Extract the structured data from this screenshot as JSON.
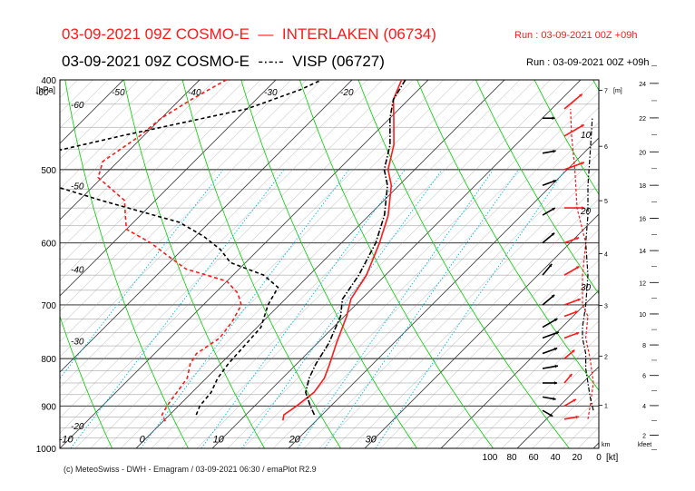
{
  "header": {
    "line1_title": "03-09-2021 09Z COSMO-E",
    "line1_station": "INTERLAKEN (06734)",
    "line1_run": "Run : 03-09-2021 00Z +09h",
    "line2_title": "03-09-2021 09Z COSMO-E",
    "line2_station": "VISP (06727)",
    "line2_run": "Run : 03-09-2021 00Z +09h"
  },
  "footer": {
    "copyright": "(c) MeteoSwiss - DWH - Emagram / 03-09-2021 06:30 / emaPlot R2.9"
  },
  "colors": {
    "interlaken": "#ff1a1a",
    "visp": "#000000",
    "isotherm": "#888888",
    "dry_adiabat": "#00cc00",
    "mixing_ratio": "#00bbee",
    "grid": "#000000"
  },
  "chart_data": {
    "type": "line",
    "title": "03-09-2021 09Z COSMO-E",
    "y_axis": {
      "label": "[hPa]",
      "scale": "log-pressure",
      "range": [
        1000,
        400
      ],
      "ticks": [
        400,
        500,
        600,
        700,
        800,
        900,
        1000
      ]
    },
    "x_axis": {
      "label": "",
      "range": [
        -60,
        40
      ],
      "ticks": [
        -10,
        0,
        10,
        20,
        30
      ],
      "tick_labels": [
        "-10",
        "0",
        "10",
        "20",
        "30"
      ]
    },
    "isotherm_labels": [
      {
        "label": "-60",
        "p": 425
      },
      {
        "label": "-50",
        "p": 520
      },
      {
        "label": "-40",
        "p": 640
      },
      {
        "label": "-30",
        "p": 765
      },
      {
        "label": "-20",
        "p": 945
      },
      {
        "label": "-60",
        "p": 410
      },
      {
        "label": "-50",
        "p": 410
      },
      {
        "label": "-40",
        "p": 410
      },
      {
        "label": "-30",
        "p": 410
      },
      {
        "label": "-20",
        "p": 410
      }
    ],
    "mixing_ratio_labels": [
      "10",
      "20",
      "30"
    ],
    "series": [
      {
        "name": "INTERLAKEN (06734)",
        "color": "#ff1a1a",
        "temperature": [
          [
            933,
            15.6
          ],
          [
            920,
            15.0
          ],
          [
            900,
            15.5
          ],
          [
            870,
            16.0
          ],
          [
            840,
            15.5
          ],
          [
            810,
            14.3
          ],
          [
            770,
            12.5
          ],
          [
            720,
            10.3
          ],
          [
            690,
            8.6
          ],
          [
            650,
            7.5
          ],
          [
            600,
            5.0
          ],
          [
            560,
            2.5
          ],
          [
            520,
            -1.0
          ],
          [
            500,
            -3.5
          ],
          [
            470,
            -6.0
          ],
          [
            440,
            -9.5
          ],
          [
            420,
            -12.0
          ],
          [
            400,
            -13.5
          ]
        ],
        "dewpoint": [
          [
            935,
            0.3
          ],
          [
            920,
            -1.0
          ],
          [
            900,
            -1.5
          ],
          [
            870,
            -2.0
          ],
          [
            840,
            -2.5
          ],
          [
            810,
            -4.0
          ],
          [
            790,
            -4.5
          ],
          [
            760,
            -3.5
          ],
          [
            730,
            -4.0
          ],
          [
            700,
            -5.0
          ],
          [
            680,
            -7.0
          ],
          [
            660,
            -10.0
          ],
          [
            640,
            -17.0
          ],
          [
            620,
            -21.0
          ],
          [
            600,
            -25.0
          ],
          [
            580,
            -30.0
          ],
          [
            560,
            -32.0
          ],
          [
            540,
            -34.0
          ],
          [
            510,
            -40.5
          ],
          [
            490,
            -42.0
          ],
          [
            460,
            -40.5
          ],
          [
            440,
            -40.0
          ],
          [
            420,
            -38.5
          ],
          [
            400,
            -36.5
          ]
        ],
        "wind_kt": [
          [
            930,
            10
          ],
          [
            900,
            8
          ],
          [
            850,
            5
          ],
          [
            800,
            8
          ],
          [
            760,
            12
          ],
          [
            720,
            10
          ],
          [
            700,
            15
          ],
          [
            650,
            15
          ],
          [
            600,
            12
          ],
          [
            550,
            20
          ],
          [
            500,
            22
          ],
          [
            460,
            25
          ],
          [
            430,
            26
          ]
        ],
        "wind_dir_deg": [
          [
            930,
            260
          ],
          [
            900,
            240
          ],
          [
            850,
            220
          ],
          [
            800,
            230
          ],
          [
            760,
            250
          ],
          [
            720,
            250
          ],
          [
            700,
            250
          ],
          [
            650,
            240
          ],
          [
            600,
            250
          ],
          [
            550,
            270
          ],
          [
            500,
            250
          ],
          [
            460,
            240
          ],
          [
            430,
            230
          ]
        ]
      },
      {
        "name": "VISP (06727)",
        "color": "#000000",
        "temperature": [
          [
            920,
            19.0
          ],
          [
            900,
            17.3
          ],
          [
            870,
            14.9
          ],
          [
            840,
            13.5
          ],
          [
            810,
            12.5
          ],
          [
            770,
            11.5
          ],
          [
            720,
            9.5
          ],
          [
            690,
            7.5
          ],
          [
            650,
            6.5
          ],
          [
            600,
            4.5
          ],
          [
            560,
            2.0
          ],
          [
            520,
            -1.5
          ],
          [
            500,
            -4.0
          ],
          [
            470,
            -6.5
          ],
          [
            440,
            -10.0
          ],
          [
            420,
            -12.0
          ],
          [
            400,
            -13.0
          ]
        ],
        "dewpoint": [
          [
            920,
            3.5
          ],
          [
            900,
            2.8
          ],
          [
            870,
            2.5
          ],
          [
            840,
            1.5
          ],
          [
            810,
            1.0
          ],
          [
            780,
            0.8
          ],
          [
            740,
            0.5
          ],
          [
            700,
            -1.5
          ],
          [
            670,
            -2.5
          ],
          [
            650,
            -6.0
          ],
          [
            630,
            -12.0
          ],
          [
            610,
            -15.0
          ],
          [
            590,
            -19.0
          ],
          [
            570,
            -24.0
          ],
          [
            540,
            -37.0
          ],
          [
            520,
            -45.5
          ],
          [
            500,
            -53.0
          ],
          [
            480,
            -50.5
          ],
          [
            460,
            -43.0
          ],
          [
            430,
            -30.0
          ],
          [
            410,
            -25.5
          ],
          [
            400,
            -24.0
          ]
        ],
        "wind_kt": [
          [
            910,
            5
          ],
          [
            880,
            8
          ],
          [
            850,
            10
          ],
          [
            820,
            12
          ],
          [
            790,
            12
          ],
          [
            760,
            15
          ],
          [
            740,
            15
          ],
          [
            700,
            12
          ],
          [
            650,
            10
          ],
          [
            600,
            12
          ],
          [
            560,
            10
          ],
          [
            520,
            10
          ],
          [
            480,
            8
          ],
          [
            440,
            6
          ]
        ],
        "wind_dir_deg": [
          [
            910,
            300
          ],
          [
            880,
            280
          ],
          [
            850,
            270
          ],
          [
            820,
            260
          ],
          [
            790,
            250
          ],
          [
            760,
            250
          ],
          [
            740,
            240
          ],
          [
            700,
            230
          ],
          [
            650,
            220
          ],
          [
            600,
            230
          ],
          [
            560,
            240
          ],
          [
            520,
            250
          ],
          [
            480,
            260
          ],
          [
            440,
            270
          ]
        ]
      }
    ],
    "wind_speed_axis": {
      "label": "[kt]",
      "ticks": [
        "100",
        "80",
        "60",
        "40",
        "20",
        "0"
      ]
    },
    "height_axes": {
      "km_label": "km",
      "m_label": "[m]",
      "km_ticks": [
        "1",
        "2",
        "3",
        "4",
        "5",
        "6",
        "7"
      ],
      "kfeet_label": "kfeet",
      "kfeet_ticks": [
        "2",
        "4",
        "6",
        "8",
        "10",
        "12",
        "14",
        "16",
        "18",
        "20",
        "22",
        "24"
      ]
    },
    "grid": true,
    "legend": "top"
  }
}
